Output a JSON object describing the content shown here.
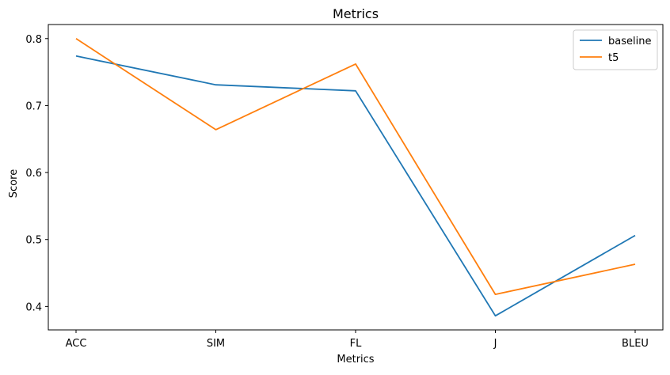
{
  "chart_data": {
    "type": "line",
    "title": "Metrics",
    "xlabel": "Metrics",
    "ylabel": "Score",
    "categories": [
      "ACC",
      "SIM",
      "FL",
      "J",
      "BLEU"
    ],
    "series": [
      {
        "name": "baseline",
        "color": "#1f77b4",
        "values": [
          0.774,
          0.731,
          0.722,
          0.386,
          0.506
        ]
      },
      {
        "name": "t5",
        "color": "#ff7f0e",
        "values": [
          0.8,
          0.664,
          0.762,
          0.418,
          0.463
        ]
      }
    ],
    "yticks": [
      "0.4",
      "0.5",
      "0.6",
      "0.7",
      "0.8"
    ],
    "ylim": [
      0.365,
      0.821
    ],
    "grid": false,
    "legend_position": "top-right"
  }
}
